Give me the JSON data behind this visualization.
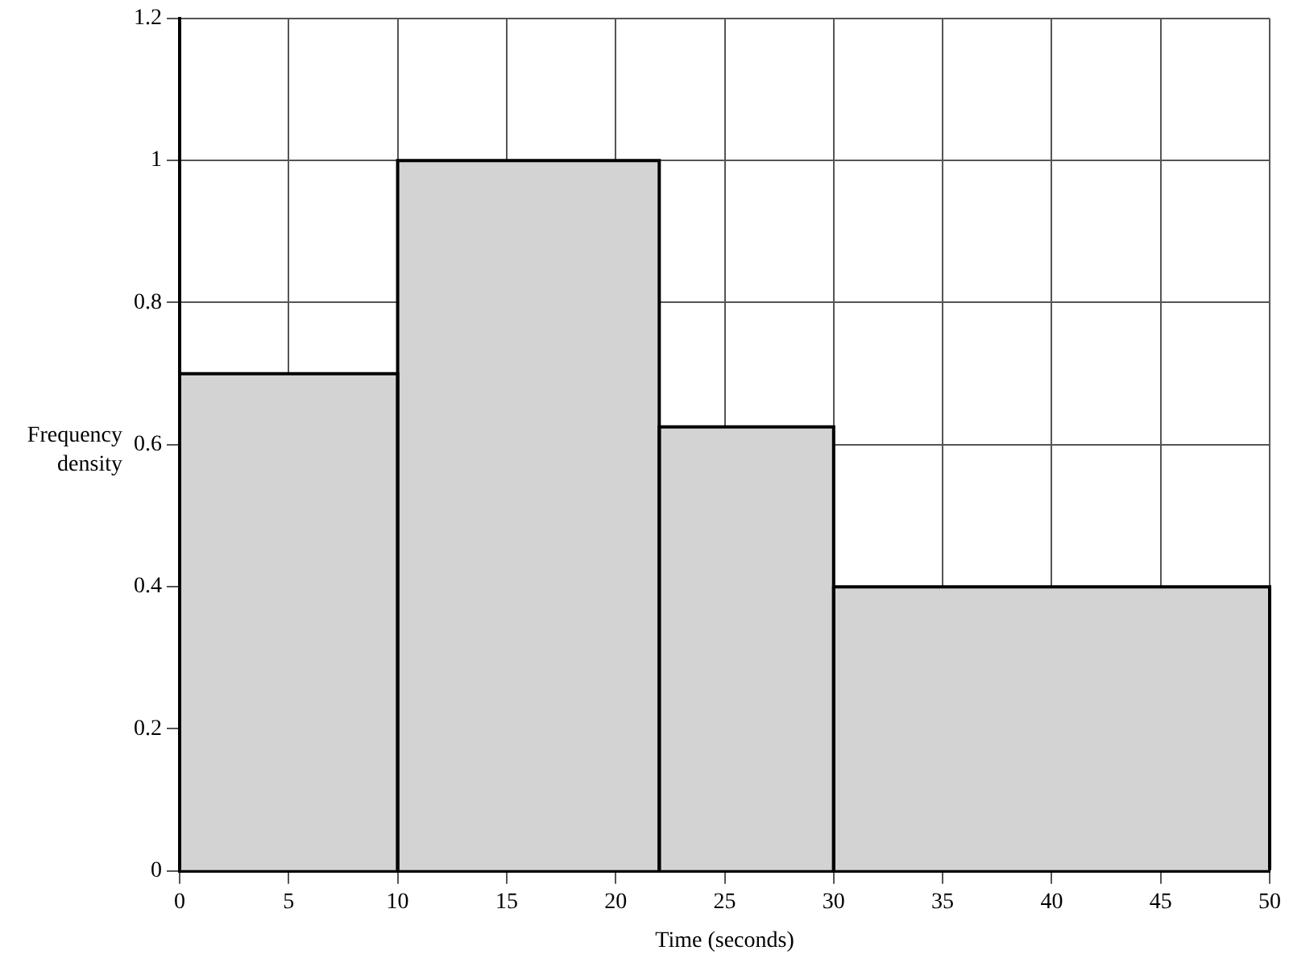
{
  "chart_data": {
    "type": "histogram",
    "xlabel": "Time (seconds)",
    "ylabel": "Frequency density",
    "bins": [
      0,
      10,
      22,
      30,
      50
    ],
    "values": [
      0.7,
      1,
      0.625,
      0.4
    ],
    "color": "#d3d3d3",
    "xlim": [
      0,
      50
    ],
    "xticks": [
      0,
      5,
      10,
      15,
      20,
      25,
      30,
      35,
      40,
      45,
      50
    ],
    "ylim": [
      0,
      1.2
    ],
    "yticks": [
      0,
      0.2,
      0.4,
      0.6,
      0.8,
      1,
      1.2
    ],
    "grid": true
  }
}
